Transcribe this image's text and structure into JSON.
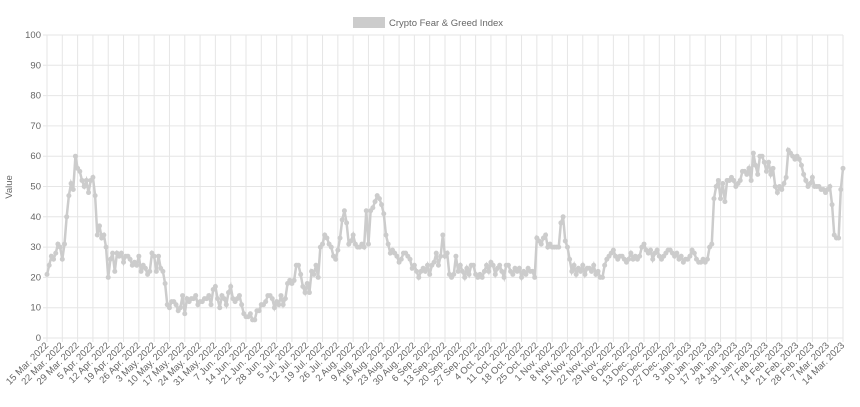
{
  "chart_data": {
    "type": "line",
    "y_label": "Value",
    "ylim": [
      0,
      100
    ],
    "yticks": [
      0,
      10,
      20,
      30,
      40,
      50,
      60,
      70,
      80,
      90,
      100
    ],
    "grid": true,
    "legend": "top",
    "categories": [
      "15 Mar. 2022",
      null,
      null,
      null,
      null,
      null,
      null,
      "22 Mar. 2022",
      null,
      null,
      null,
      null,
      null,
      null,
      "29 Mar. 2022",
      null,
      null,
      null,
      null,
      null,
      null,
      "5 Apr. 2022",
      null,
      null,
      null,
      null,
      null,
      null,
      "12 Apr. 2022",
      null,
      null,
      null,
      null,
      null,
      null,
      "19 Apr. 2022",
      null,
      null,
      null,
      null,
      null,
      null,
      "26 Apr. 2022",
      null,
      null,
      null,
      null,
      null,
      null,
      "3 May. 2022",
      null,
      null,
      null,
      null,
      null,
      null,
      "10 May. 2022",
      null,
      null,
      null,
      null,
      null,
      null,
      "17 May. 2022",
      null,
      null,
      null,
      null,
      null,
      null,
      "24 May. 2022",
      null,
      null,
      null,
      null,
      null,
      null,
      "31 May. 2022",
      null,
      null,
      null,
      null,
      null,
      null,
      "7 Jun. 2022",
      null,
      null,
      null,
      null,
      null,
      null,
      "14 Jun. 2022",
      null,
      null,
      null,
      null,
      null,
      null,
      "21 Jun. 2022",
      null,
      null,
      null,
      null,
      null,
      null,
      "28 Jun. 2022",
      null,
      null,
      null,
      null,
      null,
      null,
      "5 Jul. 2022",
      null,
      null,
      null,
      null,
      null,
      null,
      "12 Jul. 2022",
      null,
      null,
      null,
      null,
      null,
      null,
      "19 Jul. 2022",
      null,
      null,
      null,
      null,
      null,
      null,
      "26 Jul. 2022",
      null,
      null,
      null,
      null,
      null,
      null,
      "2 Aug. 2022",
      null,
      null,
      null,
      null,
      null,
      null,
      "9 Aug. 2022",
      null,
      null,
      null,
      null,
      null,
      null,
      "16 Aug. 2022",
      null,
      null,
      null,
      null,
      null,
      null,
      "23 Aug. 2022",
      null,
      null,
      null,
      null,
      null,
      null,
      "30 Aug. 2022",
      null,
      null,
      null,
      null,
      null,
      null,
      "6 Sep. 2022",
      null,
      null,
      null,
      null,
      null,
      null,
      "13 Sep. 2022",
      null,
      null,
      null,
      null,
      null,
      null,
      "20 Sep. 2022",
      null,
      null,
      null,
      null,
      null,
      null,
      "27 Sep. 2022",
      null,
      null,
      null,
      null,
      null,
      null,
      "4 Oct. 2022",
      null,
      null,
      null,
      null,
      null,
      null,
      "11 Oct. 2022",
      null,
      null,
      null,
      null,
      null,
      null,
      "18 Oct. 2022",
      null,
      null,
      null,
      null,
      null,
      null,
      "25 Oct. 2022",
      null,
      null,
      null,
      null,
      null,
      null,
      "1 Nov. 2022",
      null,
      null,
      null,
      null,
      null,
      null,
      "8 Nov. 2022",
      null,
      null,
      null,
      null,
      null,
      null,
      "15 Nov. 2022",
      null,
      null,
      null,
      null,
      null,
      null,
      "22 Nov. 2022",
      null,
      null,
      null,
      null,
      null,
      null,
      "29 Nov. 2022",
      null,
      null,
      null,
      null,
      null,
      null,
      "6 Dec. 2022",
      null,
      null,
      null,
      null,
      null,
      null,
      "13 Dec. 2022",
      null,
      null,
      null,
      null,
      null,
      null,
      "20 Dec. 2022",
      null,
      null,
      null,
      null,
      null,
      null,
      "27 Dec. 2022",
      null,
      null,
      null,
      null,
      null,
      null,
      "3 Jan. 2023",
      null,
      null,
      null,
      null,
      null,
      null,
      "10 Jan. 2023",
      null,
      null,
      null,
      null,
      null,
      null,
      "17 Jan. 2023",
      null,
      null,
      null,
      null,
      null,
      null,
      "24 Jan. 2023",
      null,
      null,
      null,
      null,
      null,
      null,
      "31 Jan. 2023",
      null,
      null,
      null,
      null,
      null,
      null,
      "7 Feb. 2023",
      null,
      null,
      null,
      null,
      null,
      null,
      "14 Feb. 2023",
      null,
      null,
      null,
      null,
      null,
      null,
      "21 Feb. 2023",
      null,
      null,
      null,
      null,
      null,
      null,
      "28 Feb. 2023",
      null,
      null,
      null,
      null,
      null,
      null,
      "7 Mar. 2023",
      null,
      null,
      null,
      null,
      null,
      null,
      "14 Mar. 2023"
    ],
    "series": [
      {
        "name": "Crypto Fear & Greed Index",
        "color": "#cccccc",
        "values": [
          21,
          24,
          27,
          26,
          28,
          31,
          30,
          26,
          31,
          40,
          47,
          51,
          49,
          60,
          56,
          55,
          52,
          50,
          52,
          48,
          52,
          53,
          47,
          34,
          37,
          33,
          34,
          30,
          20,
          26,
          28,
          22,
          28,
          27,
          28,
          25,
          27,
          27,
          26,
          24,
          25,
          24,
          27,
          22,
          24,
          23,
          21,
          22,
          28,
          27,
          22,
          27,
          23,
          22,
          18,
          11,
          10,
          12,
          12,
          11,
          9,
          10,
          14,
          8,
          13,
          12,
          13,
          13,
          14,
          11,
          12,
          12,
          13,
          13,
          14,
          11,
          16,
          17,
          13,
          10,
          14,
          13,
          11,
          15,
          17,
          13,
          12,
          13,
          14,
          11,
          8,
          7,
          7,
          8,
          6,
          6,
          9,
          9,
          11,
          11,
          12,
          14,
          14,
          13,
          10,
          12,
          11,
          14,
          11,
          13,
          18,
          19,
          18,
          19,
          24,
          24,
          21,
          17,
          15,
          18,
          15,
          22,
          21,
          24,
          20,
          30,
          31,
          34,
          33,
          31,
          30,
          27,
          26,
          29,
          33,
          39,
          42,
          38,
          31,
          32,
          34,
          31,
          30,
          30,
          31,
          30,
          42,
          31,
          42,
          43,
          45,
          47,
          46,
          44,
          41,
          34,
          31,
          28,
          29,
          28,
          27,
          25,
          26,
          28,
          28,
          27,
          26,
          23,
          24,
          22,
          20,
          22,
          23,
          22,
          24,
          21,
          24,
          25,
          28,
          24,
          27,
          34,
          27,
          28,
          21,
          20,
          21,
          27,
          22,
          24,
          22,
          20,
          23,
          21,
          24,
          24,
          21,
          20,
          21,
          20,
          22,
          24,
          22,
          25,
          24,
          21,
          23,
          24,
          22,
          20,
          24,
          24,
          22,
          21,
          23,
          22,
          23,
          20,
          22,
          21,
          23,
          22,
          22,
          20,
          33,
          32,
          31,
          33,
          34,
          30,
          31,
          30,
          30,
          30,
          30,
          38,
          40,
          32,
          30,
          26,
          22,
          24,
          21,
          23,
          22,
          24,
          21,
          23,
          23,
          22,
          24,
          21,
          22,
          20,
          20,
          24,
          26,
          27,
          28,
          29,
          27,
          26,
          27,
          27,
          26,
          25,
          26,
          28,
          26,
          27,
          26,
          27,
          30,
          31,
          29,
          28,
          29,
          26,
          28,
          29,
          27,
          26,
          27,
          28,
          29,
          29,
          28,
          27,
          28,
          26,
          27,
          25,
          26,
          26,
          27,
          29,
          28,
          26,
          25,
          25,
          26,
          25,
          26,
          30,
          31,
          46,
          50,
          52,
          46,
          51,
          45,
          52,
          52,
          53,
          52,
          50,
          51,
          52,
          55,
          55,
          54,
          56,
          52,
          61,
          57,
          54,
          60,
          60,
          58,
          55,
          58,
          54,
          56,
          50,
          48,
          50,
          49,
          51,
          53,
          62,
          61,
          60,
          59,
          60,
          59,
          57,
          54,
          52,
          50,
          51,
          53,
          50,
          50,
          50,
          49,
          49,
          48,
          49,
          50,
          44,
          34,
          33,
          33,
          49,
          56
        ]
      }
    ]
  }
}
